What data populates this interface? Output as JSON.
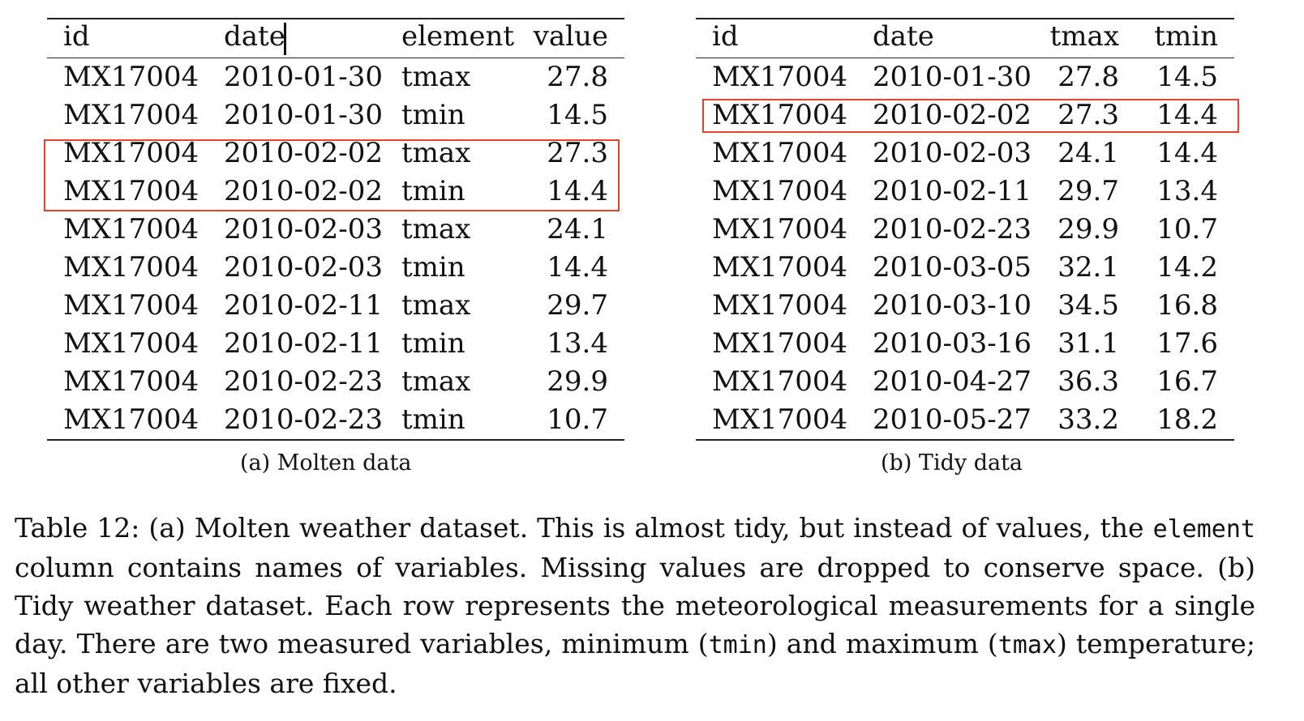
{
  "molten": {
    "caption": "(a) Molten data",
    "headers": [
      "id",
      "date",
      "element",
      "value"
    ],
    "rows": [
      [
        "MX17004",
        "2010-01-30",
        "tmax",
        "27.8"
      ],
      [
        "MX17004",
        "2010-01-30",
        "tmin",
        "14.5"
      ],
      [
        "MX17004",
        "2010-02-02",
        "tmax",
        "27.3"
      ],
      [
        "MX17004",
        "2010-02-02",
        "tmin",
        "14.4"
      ],
      [
        "MX17004",
        "2010-02-03",
        "tmax",
        "24.1"
      ],
      [
        "MX17004",
        "2010-02-03",
        "tmin",
        "14.4"
      ],
      [
        "MX17004",
        "2010-02-11",
        "tmax",
        "29.7"
      ],
      [
        "MX17004",
        "2010-02-11",
        "tmin",
        "13.4"
      ],
      [
        "MX17004",
        "2010-02-23",
        "tmax",
        "29.9"
      ],
      [
        "MX17004",
        "2010-02-23",
        "tmin",
        "10.7"
      ]
    ],
    "highlight_rows": [
      2,
      3
    ],
    "highlight_color": "#e8432a"
  },
  "tidy": {
    "caption": "(b) Tidy data",
    "headers": [
      "id",
      "date",
      "tmax",
      "tmin"
    ],
    "rows": [
      [
        "MX17004",
        "2010-01-30",
        "27.8",
        "14.5"
      ],
      [
        "MX17004",
        "2010-02-02",
        "27.3",
        "14.4"
      ],
      [
        "MX17004",
        "2010-02-03",
        "24.1",
        "14.4"
      ],
      [
        "MX17004",
        "2010-02-11",
        "29.7",
        "13.4"
      ],
      [
        "MX17004",
        "2010-02-23",
        "29.9",
        "10.7"
      ],
      [
        "MX17004",
        "2010-03-05",
        "32.1",
        "14.2"
      ],
      [
        "MX17004",
        "2010-03-10",
        "34.5",
        "16.8"
      ],
      [
        "MX17004",
        "2010-03-16",
        "31.1",
        "17.6"
      ],
      [
        "MX17004",
        "2010-04-27",
        "36.3",
        "16.7"
      ],
      [
        "MX17004",
        "2010-05-27",
        "33.2",
        "18.2"
      ]
    ],
    "highlight_rows": [
      1
    ],
    "highlight_color": "#e8432a"
  },
  "caption": {
    "p1": "Table 12: (a) Molten weather dataset. This is almost tidy, but instead of values, the ",
    "code1": "element",
    "p2": " column contains names of variables. Missing values are dropped to conserve space. (b) Tidy weather dataset. Each row represents the meteorological measurements for a single day. There are two measured variables, minimum (",
    "code2": "tmin",
    "p3": ") and maximum (",
    "code3": "tmax",
    "p4": ") temperature; all other variables are fixed."
  }
}
